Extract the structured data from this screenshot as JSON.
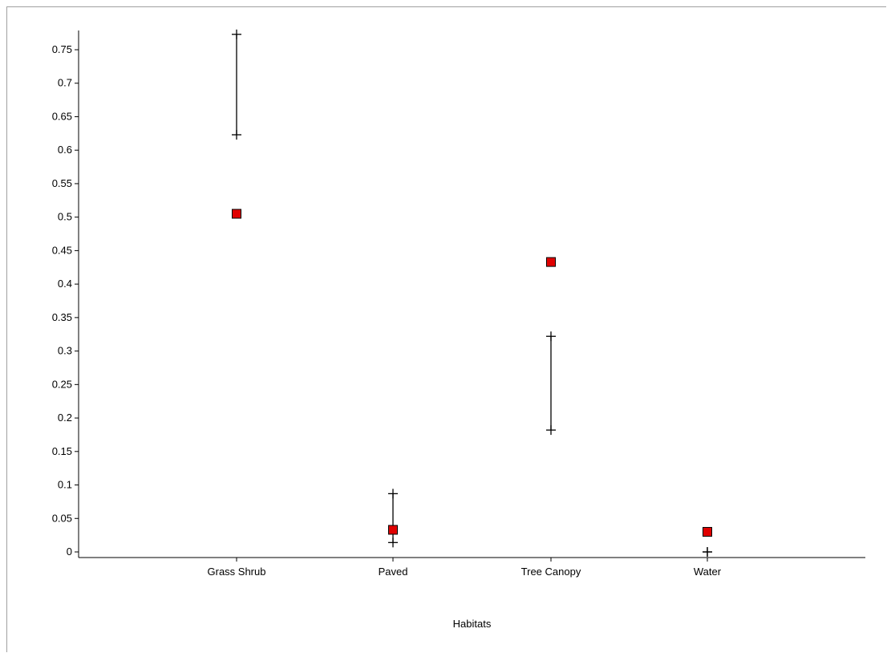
{
  "chart_data": {
    "type": "scatter",
    "xlabel": "Habitats",
    "ylabel": "",
    "categories": [
      "Grass Shrub",
      "Paved",
      "Tree Canopy",
      "Water"
    ],
    "ylim": [
      0,
      0.78
    ],
    "yticks": [
      0,
      0.05,
      0.1,
      0.15,
      0.2,
      0.25,
      0.3,
      0.35,
      0.4,
      0.45,
      0.5,
      0.55,
      0.6,
      0.65,
      0.7,
      0.75
    ],
    "ytick_labels": [
      "0",
      "0.05",
      "0.1",
      "0.15",
      "0.2",
      "0.25",
      "0.3",
      "0.35",
      "0.4",
      "0.45",
      "0.5",
      "0.55",
      "0.6",
      "0.65",
      "0.7",
      "0.75"
    ],
    "points": [
      0.505,
      0.033,
      0.433,
      0.03
    ],
    "intervals": [
      {
        "low": 0.623,
        "high": 0.773
      },
      {
        "low": 0.014,
        "high": 0.087
      },
      {
        "low": 0.182,
        "high": 0.322
      },
      {
        "low": 0.0,
        "high": 0.0
      }
    ],
    "marker_color": "#e00000",
    "grid": false,
    "legend": "none"
  }
}
